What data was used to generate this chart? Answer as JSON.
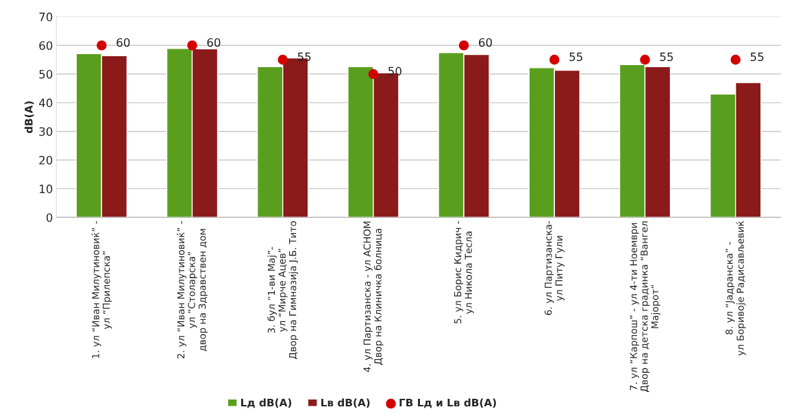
{
  "chart_data": {
    "type": "bar",
    "ylabel": "dB(A)",
    "categories": [
      "1. ул “Иван Милутиновиќ” -\nул “Прилепска”",
      "2. ул “Иван Милутиновиќ” -\nул “Столарска”\nдвор на Здравствен дом",
      "3. бул “1-ви Мај”-\nул “Мирче Ацев”\nДвор на Гимназија Ј.Б. Тито",
      "4. ул Партизанска - ул АСНОМ\nДвор на Клиничка болница",
      "5. ул Борис Кидрич -\nул Никола Тесла",
      "6. ул Партизанска-\nул Питу Гули",
      "7. ул “Карпош” - ул 4-ти Ноември\nДвор на детска градинка “Вангел\nМајорот”",
      "8. ул “Јадранска” -\nул Боривоје Радисављевиќ"
    ],
    "series": [
      {
        "name": "Lд dB(A)",
        "color": "#5a9e1e",
        "values": [
          57.1,
          58.9,
          52.6,
          52.6,
          57.5,
          52.2,
          53.3,
          43.0
        ]
      },
      {
        "name": "Lв dB(A)",
        "color": "#8b1a1a",
        "values": [
          56.4,
          58.8,
          55.6,
          50.4,
          56.8,
          51.3,
          52.6,
          47.0
        ]
      },
      {
        "name": "ГВ Lд и Lв dB(A)",
        "type": "scatter",
        "color": "#d40000",
        "marker": "circle",
        "values": [
          60,
          60,
          55,
          50,
          60,
          55,
          55,
          55
        ],
        "value_labels": [
          "60",
          "60",
          "55",
          "50",
          "60",
          "55",
          "55",
          "55"
        ]
      }
    ],
    "ylim": [
      0,
      70
    ],
    "yticks": [
      0,
      10,
      20,
      30,
      40,
      50,
      60,
      70
    ],
    "grid": "y",
    "legend": "bottom"
  }
}
